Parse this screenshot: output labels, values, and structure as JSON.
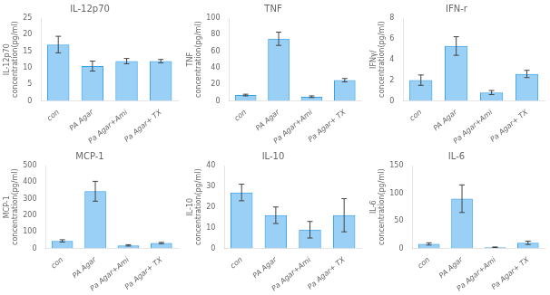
{
  "chart_data": [
    {
      "type": "bar",
      "title": "IL-12p70",
      "ylabel": "IL-12p70\nconcentration(pg/ml)",
      "categories": [
        "con",
        "PA Agar",
        "Pa Agar+Ami",
        "Pa Agar+ TX"
      ],
      "values": [
        17,
        10.5,
        12,
        12
      ],
      "errors": [
        2.5,
        1.5,
        0.8,
        0.5
      ],
      "ylim": [
        0,
        25
      ],
      "yticks": [
        0,
        5,
        10,
        15,
        20,
        25
      ],
      "grid": false
    },
    {
      "type": "bar",
      "title": "TNF",
      "ylabel": "TNF\nconcentration(pg/ml)",
      "categories": [
        "con",
        "PA Agar",
        "Pa Agar+Ami",
        "Pa Agar+ TX"
      ],
      "values": [
        7,
        75,
        5,
        25
      ],
      "errors": [
        1,
        8,
        1,
        2
      ],
      "ylim": [
        0,
        100
      ],
      "yticks": [
        0,
        20,
        40,
        60,
        80,
        100
      ],
      "grid": false
    },
    {
      "type": "bar",
      "title": "IFN-r",
      "ylabel": "IFNγ/\nconcentration(pg/ml)",
      "categories": [
        "con",
        "PA Agar",
        "Pa Agar+Ami",
        "Pa Agar+ TX"
      ],
      "values": [
        2,
        5.3,
        0.8,
        2.6
      ],
      "errors": [
        0.5,
        0.9,
        0.2,
        0.35
      ],
      "ylim": [
        0,
        8
      ],
      "yticks": [
        0,
        2,
        4,
        6,
        8
      ],
      "grid": false
    },
    {
      "type": "bar",
      "title": "MCP-1",
      "ylabel": "MCP-1\nconcentration(pg/ml)",
      "categories": [
        "con",
        "PA Agar",
        "Pa Agar+Ami",
        "Pa Agar+ TX"
      ],
      "values": [
        45,
        345,
        18,
        32
      ],
      "errors": [
        7,
        60,
        4,
        4
      ],
      "ylim": [
        0,
        500
      ],
      "yticks": [
        0,
        100,
        200,
        300,
        400,
        500
      ],
      "grid": false
    },
    {
      "type": "bar",
      "title": "IL-10",
      "ylabel": "IL-10\nconcentration(pg/ml)",
      "categories": [
        "con",
        "PA Agar",
        "Pa Agar+Ami",
        "Pa Agar+ TX"
      ],
      "values": [
        27,
        16,
        9,
        16
      ],
      "errors": [
        4,
        4,
        4,
        8
      ],
      "ylim": [
        0,
        40
      ],
      "yticks": [
        0,
        10,
        20,
        30,
        40
      ],
      "grid": false
    },
    {
      "type": "bar",
      "title": "IL-6",
      "ylabel": "IL-6\nconcentration(pg/ml)",
      "categories": [
        "con",
        "PA Agar",
        "Pa Agar+Ami",
        "Pa Agar+ TX"
      ],
      "values": [
        8,
        90,
        2,
        10
      ],
      "errors": [
        2,
        25,
        0.5,
        3
      ],
      "ylim": [
        0,
        150
      ],
      "yticks": [
        0,
        50,
        100,
        150
      ],
      "grid": false
    }
  ]
}
